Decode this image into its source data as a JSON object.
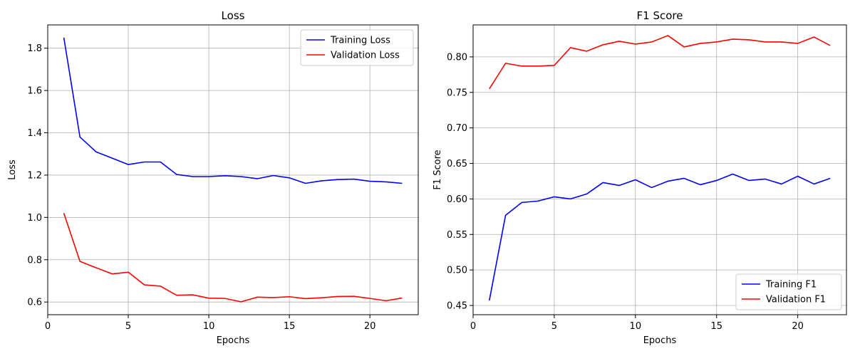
{
  "chart_data": [
    {
      "type": "line",
      "title": "Loss",
      "xlabel": "Epochs",
      "ylabel": "Loss",
      "xlim": [
        0,
        23
      ],
      "ylim": [
        0.54,
        1.91
      ],
      "xticks": [
        0,
        5,
        10,
        15,
        20
      ],
      "yticks": [
        0.6,
        0.8,
        1.0,
        1.2,
        1.4,
        1.6,
        1.8
      ],
      "ytick_labels": [
        "0.6",
        "0.8",
        "1.0",
        "1.2",
        "1.4",
        "1.6",
        "1.8"
      ],
      "grid": true,
      "legend_position": "top-right",
      "x": [
        1,
        2,
        3,
        4,
        5,
        6,
        7,
        8,
        9,
        10,
        11,
        12,
        13,
        14,
        15,
        16,
        17,
        18,
        19,
        20,
        21,
        22
      ],
      "series": [
        {
          "name": "Training Loss",
          "color": "#0000ff",
          "values": [
            1.85,
            1.38,
            1.31,
            1.28,
            1.25,
            1.262,
            1.262,
            1.203,
            1.193,
            1.193,
            1.197,
            1.193,
            1.183,
            1.198,
            1.187,
            1.161,
            1.173,
            1.179,
            1.181,
            1.171,
            1.168,
            1.161
          ]
        },
        {
          "name": "Validation Loss",
          "color": "#ff0000",
          "values": [
            1.02,
            0.792,
            0.762,
            0.733,
            0.741,
            0.681,
            0.675,
            0.632,
            0.634,
            0.618,
            0.617,
            0.601,
            0.623,
            0.621,
            0.625,
            0.616,
            0.62,
            0.626,
            0.627,
            0.617,
            0.606,
            0.619
          ]
        }
      ]
    },
    {
      "type": "line",
      "title": "F1 Score",
      "xlabel": "Epochs",
      "ylabel": "F1 Score",
      "xlim": [
        0,
        23
      ],
      "ylim": [
        0.437,
        0.845
      ],
      "xticks": [
        0,
        5,
        10,
        15,
        20
      ],
      "yticks": [
        0.45,
        0.5,
        0.55,
        0.6,
        0.65,
        0.7,
        0.75,
        0.8
      ],
      "ytick_labels": [
        "0.45",
        "0.50",
        "0.55",
        "0.60",
        "0.65",
        "0.70",
        "0.75",
        "0.80"
      ],
      "grid": true,
      "legend_position": "bottom-right",
      "x": [
        1,
        2,
        3,
        4,
        5,
        6,
        7,
        8,
        9,
        10,
        11,
        12,
        13,
        14,
        15,
        16,
        17,
        18,
        19,
        20,
        21,
        22
      ],
      "series": [
        {
          "name": "Training F1",
          "color": "#0000ff",
          "values": [
            0.457,
            0.577,
            0.595,
            0.597,
            0.603,
            0.6,
            0.607,
            0.623,
            0.619,
            0.627,
            0.616,
            0.625,
            0.629,
            0.62,
            0.626,
            0.635,
            0.626,
            0.628,
            0.621,
            0.632,
            0.621,
            0.629
          ]
        },
        {
          "name": "Validation F1",
          "color": "#ff0000",
          "values": [
            0.755,
            0.791,
            0.787,
            0.787,
            0.788,
            0.813,
            0.808,
            0.817,
            0.822,
            0.818,
            0.821,
            0.83,
            0.814,
            0.819,
            0.821,
            0.825,
            0.824,
            0.821,
            0.821,
            0.819,
            0.828,
            0.816
          ]
        }
      ]
    }
  ]
}
